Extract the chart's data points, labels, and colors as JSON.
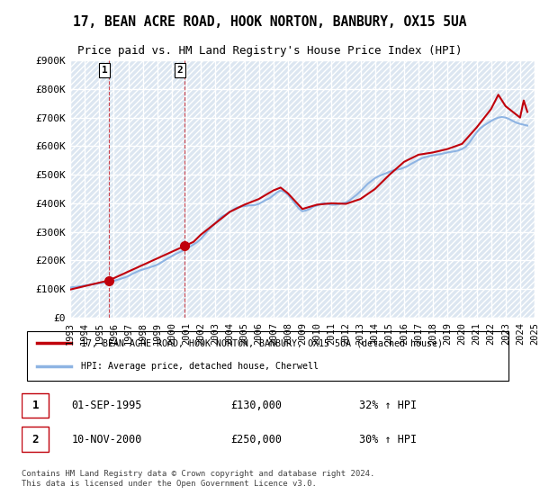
{
  "title": "17, BEAN ACRE ROAD, HOOK NORTON, BANBURY, OX15 5UA",
  "subtitle": "Price paid vs. HM Land Registry's House Price Index (HPI)",
  "ylabel": "",
  "ylim": [
    0,
    900000
  ],
  "yticks": [
    0,
    100000,
    200000,
    300000,
    400000,
    500000,
    600000,
    700000,
    800000,
    900000
  ],
  "ytick_labels": [
    "£0",
    "£100K",
    "£200K",
    "£300K",
    "£400K",
    "£500K",
    "£600K",
    "£700K",
    "£800K",
    "£900K"
  ],
  "background_color": "#ffffff",
  "plot_bg_color": "#dce6f1",
  "grid_color": "#ffffff",
  "hpi_color": "#8eb4e3",
  "price_color": "#c0000b",
  "sale1_date": "01-SEP-1995",
  "sale1_price": 130000,
  "sale1_hpi": "32% ↑ HPI",
  "sale2_date": "10-NOV-2000",
  "sale2_price": 250000,
  "sale2_hpi": "30% ↑ HPI",
  "legend_label_price": "17, BEAN ACRE ROAD, HOOK NORTON, BANBURY, OX15 5UA (detached house)",
  "legend_label_hpi": "HPI: Average price, detached house, Cherwell",
  "footer": "Contains HM Land Registry data © Crown copyright and database right 2024.\nThis data is licensed under the Open Government Licence v3.0.",
  "sale1_x": 1995.67,
  "sale1_y": 130000,
  "sale2_x": 2000.86,
  "sale2_y": 250000,
  "hpi_x": [
    1993,
    1993.25,
    1993.5,
    1993.75,
    1994,
    1994.25,
    1994.5,
    1994.75,
    1995,
    1995.25,
    1995.5,
    1995.75,
    1996,
    1996.25,
    1996.5,
    1996.75,
    1997,
    1997.25,
    1997.5,
    1997.75,
    1998,
    1998.25,
    1998.5,
    1998.75,
    1999,
    1999.25,
    1999.5,
    1999.75,
    2000,
    2000.25,
    2000.5,
    2000.75,
    2001,
    2001.25,
    2001.5,
    2001.75,
    2002,
    2002.25,
    2002.5,
    2002.75,
    2003,
    2003.25,
    2003.5,
    2003.75,
    2004,
    2004.25,
    2004.5,
    2004.75,
    2005,
    2005.25,
    2005.5,
    2005.75,
    2006,
    2006.25,
    2006.5,
    2006.75,
    2007,
    2007.25,
    2007.5,
    2007.75,
    2008,
    2008.25,
    2008.5,
    2008.75,
    2009,
    2009.25,
    2009.5,
    2009.75,
    2010,
    2010.25,
    2010.5,
    2010.75,
    2011,
    2011.25,
    2011.5,
    2011.75,
    2012,
    2012.25,
    2012.5,
    2012.75,
    2013,
    2013.25,
    2013.5,
    2013.75,
    2014,
    2014.25,
    2014.5,
    2014.75,
    2015,
    2015.25,
    2015.5,
    2015.75,
    2016,
    2016.25,
    2016.5,
    2016.75,
    2017,
    2017.25,
    2017.5,
    2017.75,
    2018,
    2018.25,
    2018.5,
    2018.75,
    2019,
    2019.25,
    2019.5,
    2019.75,
    2020,
    2020.25,
    2020.5,
    2020.75,
    2021,
    2021.25,
    2021.5,
    2021.75,
    2022,
    2022.25,
    2022.5,
    2022.75,
    2023,
    2023.25,
    2023.5,
    2023.75,
    2024,
    2024.25,
    2024.5
  ],
  "hpi_y": [
    105000,
    107000,
    108000,
    110000,
    112000,
    114000,
    116000,
    118000,
    120000,
    122000,
    124000,
    126000,
    128000,
    132000,
    136000,
    140000,
    145000,
    152000,
    158000,
    164000,
    168000,
    172000,
    176000,
    180000,
    185000,
    192000,
    200000,
    208000,
    215000,
    222000,
    228000,
    234000,
    240000,
    248000,
    256000,
    264000,
    275000,
    290000,
    305000,
    318000,
    330000,
    345000,
    355000,
    362000,
    370000,
    378000,
    385000,
    388000,
    390000,
    392000,
    393000,
    394000,
    398000,
    405000,
    412000,
    418000,
    428000,
    438000,
    445000,
    440000,
    430000,
    415000,
    398000,
    382000,
    372000,
    375000,
    380000,
    388000,
    392000,
    398000,
    400000,
    398000,
    395000,
    395000,
    397000,
    400000,
    403000,
    410000,
    420000,
    430000,
    442000,
    455000,
    468000,
    478000,
    488000,
    495000,
    500000,
    505000,
    510000,
    515000,
    518000,
    520000,
    525000,
    530000,
    538000,
    545000,
    552000,
    558000,
    562000,
    565000,
    568000,
    570000,
    572000,
    575000,
    578000,
    580000,
    582000,
    585000,
    590000,
    598000,
    612000,
    630000,
    648000,
    662000,
    672000,
    680000,
    688000,
    695000,
    700000,
    702000,
    700000,
    695000,
    688000,
    682000,
    678000,
    675000,
    672000
  ],
  "price_x": [
    1993,
    1995.67,
    2000.86,
    2001.5,
    2002,
    2003,
    2004,
    2005,
    2006,
    2007,
    2007.5,
    2008,
    2009,
    2010,
    2011,
    2012,
    2013,
    2014,
    2015,
    2016,
    2017,
    2018,
    2019,
    2020,
    2021,
    2022,
    2022.5,
    2023,
    2023.5,
    2024,
    2024.25,
    2024.5
  ],
  "price_y": [
    98000,
    130000,
    250000,
    265000,
    290000,
    330000,
    370000,
    395000,
    415000,
    445000,
    455000,
    435000,
    380000,
    395000,
    400000,
    398000,
    415000,
    450000,
    500000,
    545000,
    570000,
    578000,
    590000,
    608000,
    665000,
    730000,
    780000,
    740000,
    720000,
    700000,
    760000,
    720000
  ],
  "xtick_years": [
    1993,
    1994,
    1995,
    1996,
    1997,
    1998,
    1999,
    2000,
    2001,
    2002,
    2003,
    2004,
    2005,
    2006,
    2007,
    2008,
    2009,
    2010,
    2011,
    2012,
    2013,
    2014,
    2015,
    2016,
    2017,
    2018,
    2019,
    2020,
    2021,
    2022,
    2023,
    2024,
    2025
  ]
}
